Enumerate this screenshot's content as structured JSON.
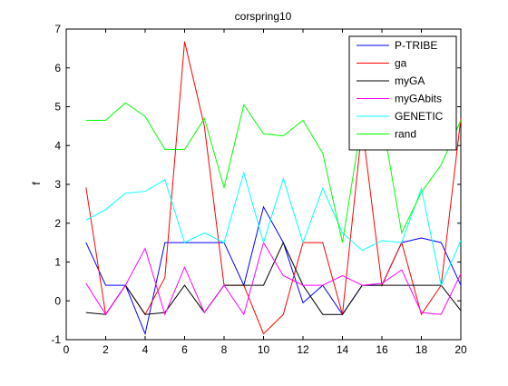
{
  "chart_data": {
    "type": "line",
    "title": "corspring10",
    "xlabel": "",
    "ylabel": "f",
    "xlim": [
      0,
      20
    ],
    "ylim": [
      -1,
      7
    ],
    "xticks": [
      0,
      2,
      4,
      6,
      8,
      10,
      12,
      14,
      16,
      18,
      20
    ],
    "yticks": [
      -1,
      0,
      1,
      2,
      3,
      4,
      5,
      6,
      7
    ],
    "grid": false,
    "legend_position": "top-right",
    "x": [
      1,
      2,
      3,
      4,
      5,
      6,
      7,
      8,
      9,
      10,
      11,
      12,
      13,
      14,
      15,
      16,
      17,
      18,
      19,
      20
    ],
    "series": [
      {
        "name": "P-TRIBE",
        "color": "#0000ff",
        "values": [
          1.5,
          0.4,
          0.4,
          -0.85,
          1.5,
          1.5,
          1.5,
          1.5,
          0.4,
          2.42,
          1.5,
          -0.05,
          0.4,
          -0.35,
          0.4,
          0.4,
          1.5,
          1.62,
          1.5,
          0.4
        ]
      },
      {
        "name": "ga",
        "color": "#ff0000",
        "values": [
          2.92,
          -0.35,
          0.4,
          -0.35,
          0.6,
          6.68,
          4.5,
          0.4,
          0.4,
          -0.85,
          -0.35,
          1.5,
          1.5,
          -0.35,
          4.5,
          0.4,
          1.5,
          -0.35,
          0.4,
          4.7
        ]
      },
      {
        "name": "myGA",
        "color": "#000000",
        "values": [
          -0.3,
          -0.35,
          0.4,
          -0.35,
          -0.3,
          0.4,
          -0.3,
          0.4,
          0.4,
          0.4,
          1.5,
          0.4,
          -0.35,
          -0.35,
          0.4,
          0.4,
          0.4,
          0.4,
          0.4,
          -0.25
        ]
      },
      {
        "name": "myGAbits",
        "color": "#ff00ff",
        "values": [
          0.45,
          -0.35,
          0.4,
          1.35,
          -0.35,
          0.87,
          -0.3,
          0.4,
          -0.35,
          1.5,
          0.65,
          0.4,
          0.4,
          0.65,
          0.4,
          0.45,
          0.8,
          -0.3,
          -0.35,
          0.7
        ]
      },
      {
        "name": "GENETIC",
        "color": "#00ffff",
        "values": [
          2.08,
          2.35,
          2.77,
          2.82,
          3.12,
          1.5,
          1.75,
          1.5,
          3.3,
          1.5,
          3.15,
          1.5,
          2.9,
          1.75,
          1.3,
          1.55,
          1.5,
          2.9,
          0.4,
          1.55
        ]
      },
      {
        "name": "rand",
        "color": "#00ff00",
        "values": [
          4.65,
          4.65,
          5.1,
          4.75,
          3.9,
          3.9,
          4.7,
          2.92,
          5.05,
          4.3,
          4.25,
          4.65,
          3.8,
          1.5,
          4.7,
          4.7,
          1.75,
          2.8,
          3.5,
          4.65
        ]
      }
    ]
  }
}
